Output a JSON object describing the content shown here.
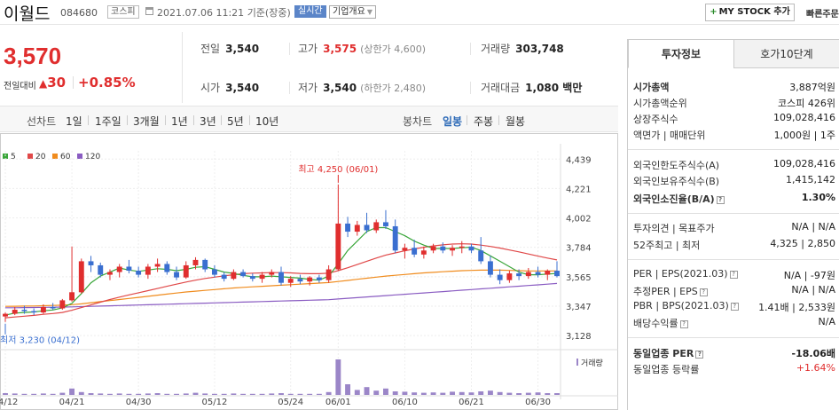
{
  "header": {
    "stock_name": "이월드",
    "stock_code": "084680",
    "market": "코스피",
    "datetime": "2021.07.06 11:21",
    "basis": "기준(장중)",
    "realtime_badge": "실시간",
    "company_overview": "기업개요",
    "my_stock_button": "MY STOCK 추가",
    "quick_order": "빠른주문"
  },
  "quote": {
    "price": "3,570",
    "change_label": "전일대비",
    "change_value": "30",
    "change_pct": "+0.85%"
  },
  "stats": {
    "prev_close": {
      "label": "전일",
      "value": "3,540"
    },
    "high": {
      "label": "고가",
      "value": "3,575",
      "sub": "(상한가 4,600)"
    },
    "volume": {
      "label": "거래량",
      "value": "303,748"
    },
    "open": {
      "label": "시가",
      "value": "3,540"
    },
    "low": {
      "label": "저가",
      "value": "3,540",
      "sub": "(하한가 2,480)"
    },
    "trade_value": {
      "label": "거래대금",
      "value": "1,080 백만"
    }
  },
  "chart_tabs": {
    "line_title": "선차트",
    "periods": [
      "1일",
      "1주일",
      "3개월",
      "1년",
      "3년",
      "5년",
      "10년"
    ],
    "candle_title": "봉차트",
    "candles": [
      "일봉",
      "주봉",
      "월봉"
    ],
    "active_candle": "일봉"
  },
  "chart_data": {
    "type": "candlestick",
    "legend": [
      "5",
      "20",
      "60",
      "120"
    ],
    "legend_colors": [
      "#3aa63a",
      "#e04848",
      "#f08c1e",
      "#8a5cc2"
    ],
    "y_ticks": [
      "4,439",
      "4,221",
      "4,002",
      "3,784",
      "3,565",
      "3,347",
      "3,128"
    ],
    "y_tick_values": [
      4439,
      4221,
      4002,
      3784,
      3565,
      3347,
      3128
    ],
    "ylim": [
      3050,
      4500
    ],
    "x_ticks": [
      "04/12",
      "04/21",
      "04/30",
      "05/12",
      "05/24",
      "06/01",
      "06/10",
      "06/21",
      "06/30"
    ],
    "x_tick_index": [
      0,
      7,
      14,
      22,
      30,
      35,
      42,
      49,
      56
    ],
    "max_annotation": "최고 4,250 (06/01)",
    "min_annotation": "최저 3,230 (04/12)",
    "volume_label": "거래량",
    "up_color": "#e02e2e",
    "down_color": "#3a6fd0",
    "candles": [
      {
        "o": 3270,
        "h": 3300,
        "l": 3230,
        "c": 3290
      },
      {
        "o": 3290,
        "h": 3340,
        "l": 3280,
        "c": 3320
      },
      {
        "o": 3320,
        "h": 3350,
        "l": 3290,
        "c": 3310
      },
      {
        "o": 3310,
        "h": 3330,
        "l": 3280,
        "c": 3300
      },
      {
        "o": 3300,
        "h": 3360,
        "l": 3290,
        "c": 3340
      },
      {
        "o": 3340,
        "h": 3370,
        "l": 3320,
        "c": 3330
      },
      {
        "o": 3330,
        "h": 3400,
        "l": 3320,
        "c": 3390
      },
      {
        "o": 3390,
        "h": 3790,
        "l": 3380,
        "c": 3450
      },
      {
        "o": 3450,
        "h": 3700,
        "l": 3440,
        "c": 3680
      },
      {
        "o": 3680,
        "h": 3720,
        "l": 3600,
        "c": 3650
      },
      {
        "o": 3650,
        "h": 3670,
        "l": 3560,
        "c": 3580
      },
      {
        "o": 3580,
        "h": 3620,
        "l": 3540,
        "c": 3600
      },
      {
        "o": 3600,
        "h": 3660,
        "l": 3560,
        "c": 3640
      },
      {
        "o": 3640,
        "h": 3690,
        "l": 3590,
        "c": 3610
      },
      {
        "o": 3610,
        "h": 3640,
        "l": 3560,
        "c": 3580
      },
      {
        "o": 3580,
        "h": 3660,
        "l": 3550,
        "c": 3640
      },
      {
        "o": 3640,
        "h": 3700,
        "l": 3600,
        "c": 3660
      },
      {
        "o": 3660,
        "h": 3680,
        "l": 3580,
        "c": 3600
      },
      {
        "o": 3600,
        "h": 3640,
        "l": 3540,
        "c": 3560
      },
      {
        "o": 3560,
        "h": 3680,
        "l": 3550,
        "c": 3650
      },
      {
        "o": 3650,
        "h": 3710,
        "l": 3620,
        "c": 3690
      },
      {
        "o": 3690,
        "h": 3700,
        "l": 3600,
        "c": 3620
      },
      {
        "o": 3620,
        "h": 3650,
        "l": 3560,
        "c": 3580
      },
      {
        "o": 3580,
        "h": 3600,
        "l": 3530,
        "c": 3550
      },
      {
        "o": 3550,
        "h": 3620,
        "l": 3540,
        "c": 3600
      },
      {
        "o": 3600,
        "h": 3620,
        "l": 3560,
        "c": 3570
      },
      {
        "o": 3570,
        "h": 3590,
        "l": 3530,
        "c": 3550
      },
      {
        "o": 3550,
        "h": 3600,
        "l": 3520,
        "c": 3580
      },
      {
        "o": 3580,
        "h": 3620,
        "l": 3560,
        "c": 3600
      },
      {
        "o": 3600,
        "h": 3640,
        "l": 3500,
        "c": 3520
      },
      {
        "o": 3520,
        "h": 3570,
        "l": 3490,
        "c": 3550
      },
      {
        "o": 3550,
        "h": 3580,
        "l": 3510,
        "c": 3530
      },
      {
        "o": 3530,
        "h": 3570,
        "l": 3500,
        "c": 3560
      },
      {
        "o": 3560,
        "h": 3580,
        "l": 3520,
        "c": 3540
      },
      {
        "o": 3540,
        "h": 3650,
        "l": 3520,
        "c": 3620
      },
      {
        "o": 3620,
        "h": 4250,
        "l": 3610,
        "c": 3960
      },
      {
        "o": 3960,
        "h": 4010,
        "l": 3860,
        "c": 3900
      },
      {
        "o": 3900,
        "h": 3980,
        "l": 3870,
        "c": 3950
      },
      {
        "o": 3950,
        "h": 4040,
        "l": 3890,
        "c": 3910
      },
      {
        "o": 3910,
        "h": 3990,
        "l": 3890,
        "c": 3970
      },
      {
        "o": 3970,
        "h": 4060,
        "l": 3920,
        "c": 3940
      },
      {
        "o": 3940,
        "h": 3990,
        "l": 3740,
        "c": 3760
      },
      {
        "o": 3760,
        "h": 3810,
        "l": 3700,
        "c": 3780
      },
      {
        "o": 3780,
        "h": 3840,
        "l": 3710,
        "c": 3730
      },
      {
        "o": 3730,
        "h": 3790,
        "l": 3700,
        "c": 3760
      },
      {
        "o": 3760,
        "h": 3810,
        "l": 3740,
        "c": 3790
      },
      {
        "o": 3790,
        "h": 3820,
        "l": 3740,
        "c": 3760
      },
      {
        "o": 3760,
        "h": 3800,
        "l": 3720,
        "c": 3780
      },
      {
        "o": 3780,
        "h": 3830,
        "l": 3740,
        "c": 3790
      },
      {
        "o": 3790,
        "h": 3810,
        "l": 3740,
        "c": 3760
      },
      {
        "o": 3760,
        "h": 3860,
        "l": 3660,
        "c": 3680
      },
      {
        "o": 3680,
        "h": 3720,
        "l": 3560,
        "c": 3580
      },
      {
        "o": 3580,
        "h": 3620,
        "l": 3510,
        "c": 3540
      },
      {
        "o": 3540,
        "h": 3610,
        "l": 3520,
        "c": 3590
      },
      {
        "o": 3590,
        "h": 3620,
        "l": 3540,
        "c": 3570
      },
      {
        "o": 3570,
        "h": 3630,
        "l": 3550,
        "c": 3600
      },
      {
        "o": 3600,
        "h": 3640,
        "l": 3560,
        "c": 3580
      },
      {
        "o": 3580,
        "h": 3620,
        "l": 3540,
        "c": 3610
      },
      {
        "o": 3610,
        "h": 3680,
        "l": 3560,
        "c": 3570
      }
    ],
    "volumes": [
      5,
      4,
      3,
      3,
      4,
      3,
      6,
      18,
      8,
      5,
      4,
      3,
      4,
      3,
      3,
      4,
      5,
      3,
      3,
      4,
      6,
      4,
      3,
      3,
      4,
      3,
      3,
      3,
      4,
      5,
      3,
      3,
      3,
      3,
      8,
      100,
      30,
      14,
      22,
      12,
      18,
      10,
      9,
      7,
      6,
      7,
      6,
      9,
      8,
      7,
      10,
      12,
      8,
      6,
      5,
      6,
      7,
      5,
      5
    ],
    "ma": {
      "5": [
        3280,
        3295,
        3300,
        3304,
        3312,
        3318,
        3334,
        3368,
        3440,
        3520,
        3570,
        3600,
        3630,
        3615,
        3605,
        3615,
        3625,
        3620,
        3610,
        3620,
        3635,
        3640,
        3620,
        3600,
        3590,
        3575,
        3565,
        3565,
        3570,
        3565,
        3560,
        3555,
        3545,
        3540,
        3570,
        3660,
        3760,
        3830,
        3900,
        3930,
        3930,
        3900,
        3870,
        3830,
        3800,
        3775,
        3775,
        3775,
        3780,
        3785,
        3760,
        3720,
        3680,
        3640,
        3600,
        3580,
        3580,
        3585,
        3590
      ],
      "20": [
        3260,
        3266,
        3272,
        3278,
        3286,
        3292,
        3300,
        3316,
        3336,
        3356,
        3376,
        3396,
        3414,
        3430,
        3446,
        3462,
        3478,
        3494,
        3510,
        3526,
        3540,
        3552,
        3562,
        3572,
        3580,
        3588,
        3592,
        3594,
        3596,
        3596,
        3594,
        3590,
        3588,
        3588,
        3592,
        3610,
        3632,
        3656,
        3680,
        3704,
        3726,
        3742,
        3758,
        3772,
        3784,
        3794,
        3802,
        3808,
        3810,
        3808,
        3800,
        3790,
        3778,
        3764,
        3750,
        3734,
        3718,
        3704,
        3690
      ],
      "60": [
        3345,
        3346,
        3347,
        3348,
        3350,
        3352,
        3354,
        3358,
        3364,
        3372,
        3380,
        3388,
        3396,
        3404,
        3412,
        3420,
        3428,
        3436,
        3444,
        3452,
        3458,
        3464,
        3470,
        3476,
        3482,
        3486,
        3490,
        3494,
        3498,
        3502,
        3506,
        3510,
        3514,
        3518,
        3522,
        3530,
        3538,
        3546,
        3554,
        3562,
        3570,
        3576,
        3582,
        3588,
        3594,
        3598,
        3602,
        3606,
        3610,
        3612,
        3614,
        3614,
        3614,
        3612,
        3610,
        3608,
        3608,
        3608,
        3608
      ],
      "120": [
        3335,
        3335,
        3336,
        3337,
        3338,
        3339,
        3340,
        3341,
        3343,
        3345,
        3347,
        3349,
        3351,
        3353,
        3355,
        3357,
        3359,
        3361,
        3363,
        3365,
        3367,
        3369,
        3371,
        3373,
        3375,
        3377,
        3379,
        3381,
        3383,
        3385,
        3387,
        3389,
        3391,
        3393,
        3395,
        3400,
        3405,
        3410,
        3415,
        3420,
        3425,
        3430,
        3435,
        3440,
        3445,
        3450,
        3455,
        3460,
        3465,
        3470,
        3475,
        3480,
        3485,
        3490,
        3495,
        3500,
        3505,
        3510,
        3515
      ]
    }
  },
  "panel": {
    "tab_invest": "투자정보",
    "tab_orderbook": "호가10단계",
    "market_cap_label": "시가총액",
    "market_cap_value": "3,887억원",
    "market_cap_rank_label": "시가총액순위",
    "market_cap_rank_value": "코스피 426위",
    "shares_label": "상장주식수",
    "shares_value": "109,028,416",
    "par_label": "액면가 | 매매단위",
    "par_value": "1,000원 | 1주",
    "foreign_limit_label": "외국인한도주식수(A)",
    "foreign_limit_value": "109,028,416",
    "foreign_hold_label": "외국인보유주식수(B)",
    "foreign_hold_value": "1,415,142",
    "foreign_ratio_label": "외국인소진율(B/A)",
    "foreign_ratio_value": "1.30%",
    "opinion_label": "투자의견 | 목표주가",
    "opinion_value": "N/A | N/A",
    "week52_label": "52주최고 | 최저",
    "week52_value": "4,325 | 2,850",
    "per_label": "PER | EPS(2021.03)",
    "per_value": "N/A | -97원",
    "est_per_label": "추정PER | EPS",
    "est_per_value": "N/A | N/A",
    "pbr_label": "PBR | BPS(2021.03)",
    "pbr_value": "1.41배 | 2,533원",
    "div_label": "배당수익률",
    "div_value": "N/A",
    "sector_per_label": "동일업종 PER",
    "sector_per_value": "-18.06배",
    "sector_rate_label": "동일업종 등락률",
    "sector_rate_value": "+1.64%"
  }
}
